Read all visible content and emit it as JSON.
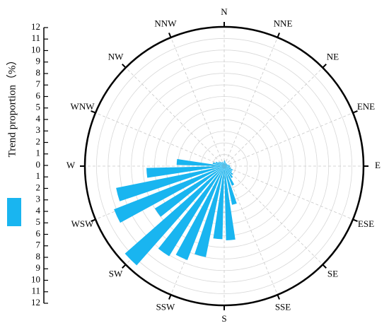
{
  "chart_data": {
    "type": "polar-bar",
    "y_label": "Trend proportion（%）",
    "directions": [
      "N",
      "NNE",
      "NE",
      "ENE",
      "E",
      "ESE",
      "SE",
      "SSE",
      "S",
      "SSW",
      "SW",
      "WSW",
      "W",
      "WNW",
      "NW",
      "NNW"
    ],
    "x": [
      5,
      15,
      25,
      35,
      45,
      55,
      65,
      75,
      85,
      95,
      105,
      115,
      125,
      135,
      145,
      155,
      165,
      175,
      185,
      195,
      205,
      215,
      225,
      235,
      245,
      255,
      265,
      275,
      285,
      295,
      305,
      315,
      325,
      335,
      345,
      355
    ],
    "values": [
      0.5,
      0.4,
      0.3,
      0.3,
      0.3,
      0.3,
      0.3,
      0.4,
      0.5,
      0.5,
      0.6,
      0.8,
      0.8,
      1.0,
      1.2,
      1.8,
      3.4,
      6.4,
      6.3,
      8.0,
      8.7,
      9.1,
      11.4,
      7.0,
      10.2,
      9.5,
      6.7,
      4.1,
      1.0,
      0.8,
      0.6,
      0.5,
      0.4,
      0.4,
      0.3,
      0.4
    ],
    "color": "#19b5f0",
    "rlim": [
      0,
      12
    ],
    "rticks": [
      0,
      1,
      2,
      3,
      4,
      5,
      6,
      7,
      8,
      9,
      10,
      11,
      12
    ],
    "grid": true
  }
}
